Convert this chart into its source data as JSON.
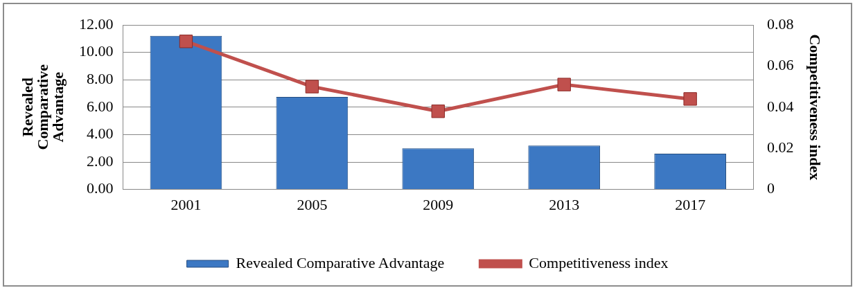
{
  "chart_data": {
    "type": "bar",
    "categories": [
      "2001",
      "2005",
      "2009",
      "2013",
      "2017"
    ],
    "series": [
      {
        "name": "Revealed Comparative Advantage",
        "color": "#3c78c3",
        "values": [
          11.2,
          6.75,
          3.0,
          3.2,
          2.6
        ]
      },
      {
        "name": "Competitiveness index",
        "type": "line",
        "axis": "y2",
        "color": "#c0504d",
        "values": [
          0.072,
          0.05,
          0.038,
          0.051,
          0.044
        ]
      }
    ],
    "ylabel": "Revealed Comparative Advantage",
    "y2label": "Competitiveness index",
    "ylim": [
      0,
      12
    ],
    "yticks": [
      {
        "value": 0,
        "label": "0.00"
      },
      {
        "value": 2,
        "label": "2.00"
      },
      {
        "value": 4,
        "label": "4.00"
      },
      {
        "value": 6,
        "label": "6.00"
      },
      {
        "value": 8,
        "label": "8.00"
      },
      {
        "value": 10,
        "label": "10.00"
      },
      {
        "value": 12,
        "label": "12.00"
      }
    ],
    "y2lim": [
      0,
      0.08
    ],
    "y2ticks": [
      0,
      0.02,
      0.04,
      0.06,
      0.08
    ],
    "grid": "y",
    "legend": "bottom",
    "marker": "square"
  }
}
